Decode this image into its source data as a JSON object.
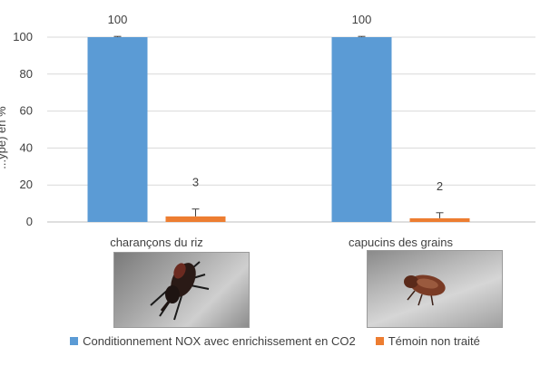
{
  "chart_data": {
    "type": "bar",
    "categories": [
      "charançons du riz",
      "capucins des grains"
    ],
    "series": [
      {
        "name": "Conditionnement NOX avec enrichissement en CO2",
        "values": [
          100,
          100
        ],
        "error": [
          0.4,
          0.4
        ],
        "color": "#5b9bd5"
      },
      {
        "name": "Témoin non traité",
        "values": [
          3,
          2
        ],
        "error": [
          4,
          3
        ],
        "color": "#ed7d31"
      }
    ],
    "data_labels": [
      [
        "100",
        "100"
      ],
      [
        "3",
        "2"
      ]
    ],
    "ylabel": "...ype) en %",
    "yticks": [
      0,
      20,
      40,
      60,
      80,
      100
    ],
    "ylim": [
      0,
      100
    ],
    "grid": true,
    "legend_position": "bottom"
  },
  "photos": [
    {
      "subject": "charançons du riz",
      "icon": "rice-weevil-photo"
    },
    {
      "subject": "capucins des grains",
      "icon": "grain-borer-photo"
    }
  ]
}
